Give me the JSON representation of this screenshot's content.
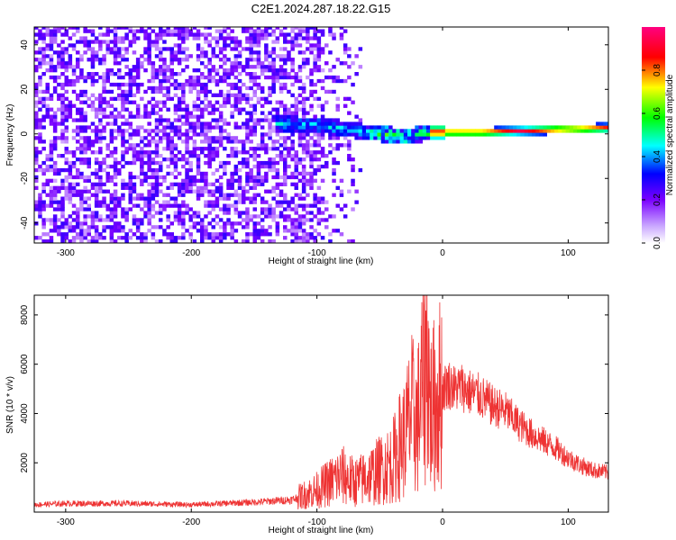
{
  "figure_title": "C2E1.2024.287.18.22.G15",
  "chart_data": [
    {
      "type": "heatmap",
      "title": "",
      "xlabel": "Height of straight line (km)",
      "ylabel": "Frequency (Hz)",
      "xlim": [
        -325,
        132
      ],
      "ylim": [
        -49,
        48
      ],
      "xticks": [
        -300,
        -200,
        -100,
        0,
        100
      ],
      "yticks": [
        -40,
        -20,
        0,
        20,
        40
      ],
      "colorbar": {
        "label": "Normalized spectral amplitude",
        "range": [
          0,
          1
        ],
        "ticks": [
          0.0,
          0.2,
          0.4,
          0.6,
          0.8
        ],
        "colormap": [
          "#ffffff",
          "#7a00ff",
          "#0000ff",
          "#00ffff",
          "#00ff00",
          "#ffff00",
          "#ff0000",
          "#ff0080"
        ]
      },
      "features": {
        "noise_region_x": [
          -325,
          -110
        ],
        "signal_band_x": [
          -135,
          132
        ],
        "signal_frequency_hz": [
          [
            -135,
            4
          ],
          [
            -100,
            3
          ],
          [
            -60,
            0
          ],
          [
            -30,
            -2
          ],
          [
            -10,
            0
          ],
          [
            30,
            0
          ],
          [
            80,
            1
          ],
          [
            132,
            2
          ]
        ],
        "max_amplitude_x": [
          -5,
          132
        ],
        "max_amplitude": 0.95
      }
    },
    {
      "type": "line",
      "title": "",
      "xlabel": "Height of straight line (km)",
      "ylabel": "SNR (10 * v/v)",
      "xlim": [
        -325,
        132
      ],
      "ylim": [
        0,
        8800
      ],
      "xticks": [
        -300,
        -200,
        -100,
        0,
        100
      ],
      "yticks": [
        2000,
        4000,
        6000,
        8000
      ],
      "series": [
        {
          "color": "#ee3333",
          "x": [
            -325,
            -300,
            -250,
            -200,
            -150,
            -120,
            -110,
            -100,
            -90,
            -80,
            -70,
            -60,
            -50,
            -40,
            -35,
            -30,
            -25,
            -20,
            -15,
            -12,
            -10,
            -5,
            0,
            5,
            10,
            15,
            20,
            30,
            40,
            50,
            60,
            70,
            80,
            90,
            100,
            110,
            120,
            132
          ],
          "y": [
            300,
            350,
            350,
            300,
            400,
            500,
            700,
            900,
            1200,
            1500,
            1200,
            1400,
            1700,
            2000,
            2600,
            3000,
            4000,
            3600,
            5500,
            7200,
            4000,
            4500,
            5000,
            5200,
            5000,
            5100,
            4900,
            4700,
            4300,
            4100,
            3600,
            3200,
            2900,
            2600,
            2200,
            1900,
            1700,
            1600
          ]
        }
      ]
    }
  ]
}
